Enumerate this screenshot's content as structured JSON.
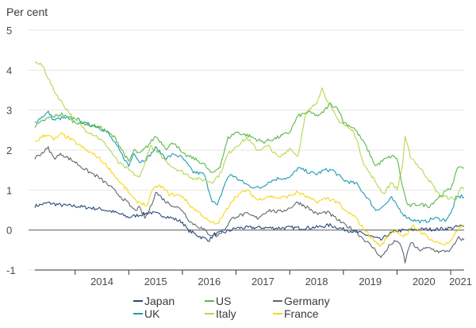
{
  "chart_data": {
    "type": "line",
    "unit_label": "Per cent",
    "ylim": [
      -1,
      5
    ],
    "y_ticks": [
      "5",
      "4",
      "3",
      "2",
      "1",
      "0",
      "-1"
    ],
    "x_ticks": [
      "2014",
      "2015",
      "2016",
      "2017",
      "2018",
      "2019",
      "2020",
      "2021"
    ],
    "xlim": [
      2013.25,
      2021.25
    ],
    "grid": true,
    "legend_position": "bottom",
    "series": [
      {
        "name": "Japan",
        "color": "#274b78",
        "points": [
          [
            2013.25,
            0.6
          ],
          [
            2013.5,
            0.68
          ],
          [
            2013.75,
            0.62
          ],
          [
            2014.0,
            0.6
          ],
          [
            2014.25,
            0.56
          ],
          [
            2014.5,
            0.52
          ],
          [
            2014.75,
            0.44
          ],
          [
            2015.0,
            0.32
          ],
          [
            2015.2,
            0.38
          ],
          [
            2015.4,
            0.44
          ],
          [
            2015.6,
            0.38
          ],
          [
            2015.8,
            0.3
          ],
          [
            2016.0,
            0.2
          ],
          [
            2016.1,
            0.0
          ],
          [
            2016.35,
            -0.18
          ],
          [
            2016.5,
            -0.25
          ],
          [
            2016.6,
            -0.1
          ],
          [
            2016.8,
            -0.05
          ],
          [
            2017.0,
            0.05
          ],
          [
            2017.25,
            0.06
          ],
          [
            2017.5,
            0.06
          ],
          [
            2017.75,
            0.05
          ],
          [
            2018.0,
            0.06
          ],
          [
            2018.25,
            0.05
          ],
          [
            2018.5,
            0.07
          ],
          [
            2018.75,
            0.12
          ],
          [
            2019.0,
            0.02
          ],
          [
            2019.25,
            -0.05
          ],
          [
            2019.5,
            -0.15
          ],
          [
            2019.7,
            -0.25
          ],
          [
            2019.85,
            -0.1
          ],
          [
            2020.0,
            -0.02
          ],
          [
            2020.25,
            0.0
          ],
          [
            2020.5,
            0.02
          ],
          [
            2020.75,
            0.02
          ],
          [
            2021.0,
            0.05
          ],
          [
            2021.2,
            0.1
          ],
          [
            2021.25,
            0.08
          ]
        ]
      },
      {
        "name": "UK",
        "color": "#1f9bb0",
        "points": [
          [
            2013.25,
            2.7
          ],
          [
            2013.4,
            2.85
          ],
          [
            2013.5,
            2.95
          ],
          [
            2013.6,
            2.75
          ],
          [
            2013.75,
            2.8
          ],
          [
            2014.0,
            2.8
          ],
          [
            2014.2,
            2.65
          ],
          [
            2014.4,
            2.6
          ],
          [
            2014.6,
            2.45
          ],
          [
            2014.8,
            2.05
          ],
          [
            2015.0,
            1.6
          ],
          [
            2015.1,
            1.95
          ],
          [
            2015.2,
            1.7
          ],
          [
            2015.35,
            1.8
          ],
          [
            2015.5,
            2.05
          ],
          [
            2015.7,
            1.8
          ],
          [
            2015.85,
            1.9
          ],
          [
            2016.0,
            1.8
          ],
          [
            2016.2,
            1.45
          ],
          [
            2016.4,
            1.4
          ],
          [
            2016.55,
            0.75
          ],
          [
            2016.65,
            0.6
          ],
          [
            2016.8,
            1.2
          ],
          [
            2016.9,
            1.4
          ],
          [
            2017.0,
            1.3
          ],
          [
            2017.25,
            1.1
          ],
          [
            2017.45,
            1.05
          ],
          [
            2017.6,
            1.2
          ],
          [
            2017.8,
            1.3
          ],
          [
            2018.0,
            1.3
          ],
          [
            2018.15,
            1.55
          ],
          [
            2018.35,
            1.45
          ],
          [
            2018.5,
            1.4
          ],
          [
            2018.65,
            1.5
          ],
          [
            2018.8,
            1.5
          ],
          [
            2019.0,
            1.25
          ],
          [
            2019.25,
            1.15
          ],
          [
            2019.45,
            0.8
          ],
          [
            2019.6,
            0.5
          ],
          [
            2019.75,
            0.6
          ],
          [
            2019.9,
            0.8
          ],
          [
            2020.0,
            0.6
          ],
          [
            2020.15,
            0.35
          ],
          [
            2020.3,
            0.25
          ],
          [
            2020.5,
            0.2
          ],
          [
            2020.7,
            0.3
          ],
          [
            2020.9,
            0.25
          ],
          [
            2021.0,
            0.4
          ],
          [
            2021.1,
            0.8
          ],
          [
            2021.2,
            0.85
          ],
          [
            2021.25,
            0.82
          ]
        ]
      },
      {
        "name": "US",
        "color": "#5ab84a",
        "points": [
          [
            2013.25,
            2.6
          ],
          [
            2013.5,
            2.8
          ],
          [
            2013.75,
            2.9
          ],
          [
            2014.0,
            2.7
          ],
          [
            2014.25,
            2.65
          ],
          [
            2014.5,
            2.55
          ],
          [
            2014.75,
            2.3
          ],
          [
            2015.0,
            1.7
          ],
          [
            2015.1,
            2.0
          ],
          [
            2015.2,
            1.9
          ],
          [
            2015.35,
            2.1
          ],
          [
            2015.5,
            2.35
          ],
          [
            2015.7,
            2.05
          ],
          [
            2015.85,
            2.2
          ],
          [
            2016.0,
            1.9
          ],
          [
            2016.2,
            1.8
          ],
          [
            2016.4,
            1.65
          ],
          [
            2016.55,
            1.4
          ],
          [
            2016.7,
            1.6
          ],
          [
            2016.85,
            2.3
          ],
          [
            2017.0,
            2.45
          ],
          [
            2017.25,
            2.35
          ],
          [
            2017.5,
            2.2
          ],
          [
            2017.75,
            2.3
          ],
          [
            2018.0,
            2.45
          ],
          [
            2018.15,
            2.85
          ],
          [
            2018.35,
            2.95
          ],
          [
            2018.55,
            2.85
          ],
          [
            2018.75,
            3.15
          ],
          [
            2018.9,
            3.05
          ],
          [
            2019.0,
            2.7
          ],
          [
            2019.2,
            2.55
          ],
          [
            2019.4,
            2.15
          ],
          [
            2019.6,
            1.6
          ],
          [
            2019.75,
            1.75
          ],
          [
            2019.9,
            1.85
          ],
          [
            2020.0,
            1.8
          ],
          [
            2020.1,
            1.1
          ],
          [
            2020.2,
            0.6
          ],
          [
            2020.4,
            0.65
          ],
          [
            2020.6,
            0.6
          ],
          [
            2020.8,
            0.85
          ],
          [
            2021.0,
            1.05
          ],
          [
            2021.15,
            1.6
          ],
          [
            2021.25,
            1.55
          ]
        ]
      },
      {
        "name": "Italy",
        "color": "#b5d84e",
        "points": [
          [
            2013.25,
            4.2
          ],
          [
            2013.4,
            4.1
          ],
          [
            2013.6,
            3.5
          ],
          [
            2013.8,
            3.1
          ],
          [
            2014.0,
            2.75
          ],
          [
            2014.2,
            2.5
          ],
          [
            2014.4,
            2.35
          ],
          [
            2014.6,
            2.1
          ],
          [
            2014.8,
            1.7
          ],
          [
            2015.0,
            1.5
          ],
          [
            2015.2,
            1.3
          ],
          [
            2015.4,
            2.1
          ],
          [
            2015.6,
            1.85
          ],
          [
            2015.8,
            1.6
          ],
          [
            2016.0,
            1.45
          ],
          [
            2016.2,
            1.3
          ],
          [
            2016.4,
            1.25
          ],
          [
            2016.55,
            1.2
          ],
          [
            2016.7,
            1.4
          ],
          [
            2016.85,
            1.9
          ],
          [
            2017.0,
            2.1
          ],
          [
            2017.2,
            2.3
          ],
          [
            2017.4,
            2.0
          ],
          [
            2017.6,
            2.1
          ],
          [
            2017.8,
            1.8
          ],
          [
            2018.0,
            2.05
          ],
          [
            2018.15,
            1.85
          ],
          [
            2018.3,
            2.9
          ],
          [
            2018.5,
            3.2
          ],
          [
            2018.6,
            3.55
          ],
          [
            2018.75,
            3.1
          ],
          [
            2018.9,
            2.75
          ],
          [
            2019.0,
            2.65
          ],
          [
            2019.2,
            2.45
          ],
          [
            2019.4,
            1.6
          ],
          [
            2019.6,
            1.2
          ],
          [
            2019.75,
            0.9
          ],
          [
            2019.9,
            1.2
          ],
          [
            2020.0,
            1.0
          ],
          [
            2020.1,
            1.6
          ],
          [
            2020.15,
            2.3
          ],
          [
            2020.25,
            1.85
          ],
          [
            2020.4,
            1.6
          ],
          [
            2020.6,
            1.25
          ],
          [
            2020.8,
            0.85
          ],
          [
            2021.0,
            0.8
          ],
          [
            2021.1,
            0.75
          ],
          [
            2021.2,
            1.1
          ],
          [
            2021.25,
            1.05
          ]
        ]
      },
      {
        "name": "Germany",
        "color": "#5c6670",
        "points": [
          [
            2013.25,
            1.8
          ],
          [
            2013.4,
            1.95
          ],
          [
            2013.5,
            2.05
          ],
          [
            2013.6,
            1.8
          ],
          [
            2013.75,
            1.9
          ],
          [
            2014.0,
            1.7
          ],
          [
            2014.2,
            1.5
          ],
          [
            2014.4,
            1.35
          ],
          [
            2014.6,
            1.15
          ],
          [
            2014.8,
            0.9
          ],
          [
            2015.0,
            0.65
          ],
          [
            2015.1,
            0.5
          ],
          [
            2015.2,
            0.55
          ],
          [
            2015.3,
            0.3
          ],
          [
            2015.4,
            0.55
          ],
          [
            2015.5,
            0.95
          ],
          [
            2015.7,
            0.7
          ],
          [
            2015.85,
            0.6
          ],
          [
            2016.0,
            0.5
          ],
          [
            2016.15,
            0.2
          ],
          [
            2016.35,
            0.05
          ],
          [
            2016.5,
            -0.1
          ],
          [
            2016.65,
            -0.15
          ],
          [
            2016.8,
            0.05
          ],
          [
            2016.9,
            0.25
          ],
          [
            2017.0,
            0.35
          ],
          [
            2017.2,
            0.4
          ],
          [
            2017.4,
            0.3
          ],
          [
            2017.6,
            0.5
          ],
          [
            2017.8,
            0.45
          ],
          [
            2018.0,
            0.55
          ],
          [
            2018.15,
            0.7
          ],
          [
            2018.35,
            0.55
          ],
          [
            2018.5,
            0.4
          ],
          [
            2018.7,
            0.45
          ],
          [
            2018.9,
            0.25
          ],
          [
            2019.0,
            0.15
          ],
          [
            2019.2,
            0.0
          ],
          [
            2019.4,
            -0.25
          ],
          [
            2019.6,
            -0.5
          ],
          [
            2019.7,
            -0.7
          ],
          [
            2019.85,
            -0.4
          ],
          [
            2020.0,
            -0.25
          ],
          [
            2020.1,
            -0.5
          ],
          [
            2020.15,
            -0.8
          ],
          [
            2020.25,
            -0.3
          ],
          [
            2020.4,
            -0.5
          ],
          [
            2020.6,
            -0.45
          ],
          [
            2020.8,
            -0.55
          ],
          [
            2021.0,
            -0.5
          ],
          [
            2021.15,
            -0.2
          ],
          [
            2021.25,
            -0.25
          ]
        ]
      },
      {
        "name": "France",
        "color": "#f5d816",
        "points": [
          [
            2013.25,
            2.2
          ],
          [
            2013.4,
            2.35
          ],
          [
            2013.5,
            2.4
          ],
          [
            2013.6,
            2.25
          ],
          [
            2013.75,
            2.4
          ],
          [
            2014.0,
            2.2
          ],
          [
            2014.2,
            2.0
          ],
          [
            2014.4,
            1.85
          ],
          [
            2014.6,
            1.6
          ],
          [
            2014.8,
            1.25
          ],
          [
            2015.0,
            0.95
          ],
          [
            2015.1,
            0.75
          ],
          [
            2015.2,
            0.7
          ],
          [
            2015.35,
            0.6
          ],
          [
            2015.45,
            1.05
          ],
          [
            2015.6,
            1.1
          ],
          [
            2015.75,
            0.9
          ],
          [
            2016.0,
            0.85
          ],
          [
            2016.15,
            0.6
          ],
          [
            2016.35,
            0.4
          ],
          [
            2016.5,
            0.2
          ],
          [
            2016.65,
            0.15
          ],
          [
            2016.8,
            0.45
          ],
          [
            2016.9,
            0.7
          ],
          [
            2017.0,
            0.85
          ],
          [
            2017.2,
            1.0
          ],
          [
            2017.4,
            0.75
          ],
          [
            2017.6,
            0.85
          ],
          [
            2017.8,
            0.8
          ],
          [
            2018.0,
            0.85
          ],
          [
            2018.15,
            0.95
          ],
          [
            2018.35,
            0.8
          ],
          [
            2018.5,
            0.7
          ],
          [
            2018.7,
            0.8
          ],
          [
            2018.9,
            0.7
          ],
          [
            2019.0,
            0.5
          ],
          [
            2019.2,
            0.35
          ],
          [
            2019.4,
            0.0
          ],
          [
            2019.6,
            -0.3
          ],
          [
            2019.7,
            -0.4
          ],
          [
            2019.85,
            -0.1
          ],
          [
            2020.0,
            0.0
          ],
          [
            2020.1,
            -0.15
          ],
          [
            2020.2,
            -0.1
          ],
          [
            2020.3,
            0.1
          ],
          [
            2020.5,
            -0.1
          ],
          [
            2020.7,
            -0.3
          ],
          [
            2020.9,
            -0.35
          ],
          [
            2021.0,
            -0.3
          ],
          [
            2021.15,
            0.05
          ],
          [
            2021.25,
            0.1
          ]
        ]
      }
    ],
    "legend": [
      {
        "label": "Japan",
        "color": "#274b78"
      },
      {
        "label": "US",
        "color": "#5ab84a"
      },
      {
        "label": "Germany",
        "color": "#5c6670"
      },
      {
        "label": "UK",
        "color": "#1f9bb0"
      },
      {
        "label": "Italy",
        "color": "#b5d84e"
      },
      {
        "label": "France",
        "color": "#f5d816"
      }
    ]
  }
}
